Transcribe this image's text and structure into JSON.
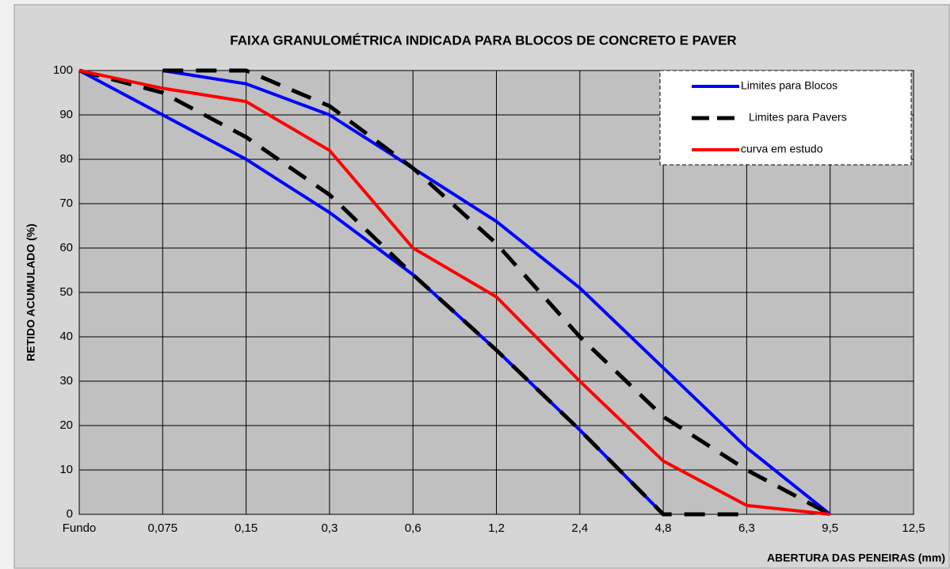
{
  "chart_data": {
    "type": "line",
    "title": "FAIXA GRANULOMÉTRICA INDICADA PARA BLOCOS DE CONCRETO E PAVER",
    "ylabel": "RETIDO  ACUMULADO  (%)",
    "xlabel": "ABERTURA  DAS PENEIRAS  (mm)",
    "categories": [
      "Fundo",
      "0,075",
      "0,15",
      "0,3",
      "0,6",
      "1,2",
      "2,4",
      "4,8",
      "6,3",
      "9,5",
      "12,5"
    ],
    "ylim": [
      0,
      100
    ],
    "yticks": [
      0,
      10,
      20,
      30,
      40,
      50,
      60,
      70,
      80,
      90,
      100
    ],
    "grid": true,
    "legend": "top-right",
    "series": [
      {
        "name": "Limites  para Blocos",
        "color": "#0000ff",
        "dashed": false,
        "lines": [
          [
            null,
            100,
            97,
            90,
            78,
            66,
            51,
            33,
            15,
            0,
            null
          ],
          [
            100,
            90,
            80,
            68,
            54,
            37,
            19,
            0,
            null,
            null,
            null
          ]
        ]
      },
      {
        "name": "Limites  para Pavers",
        "color": "#000000",
        "dashed": true,
        "lines": [
          [
            null,
            100,
            100,
            92,
            78,
            61,
            40,
            22,
            10,
            0,
            null
          ],
          [
            100,
            95,
            85,
            72,
            54,
            37,
            19,
            0,
            0,
            null,
            null
          ]
        ]
      },
      {
        "name": "curva em estudo",
        "color": "#ff0000",
        "dashed": false,
        "lines": [
          [
            100,
            96,
            93,
            82,
            60,
            49,
            30,
            12,
            2,
            0,
            null
          ]
        ]
      }
    ]
  }
}
